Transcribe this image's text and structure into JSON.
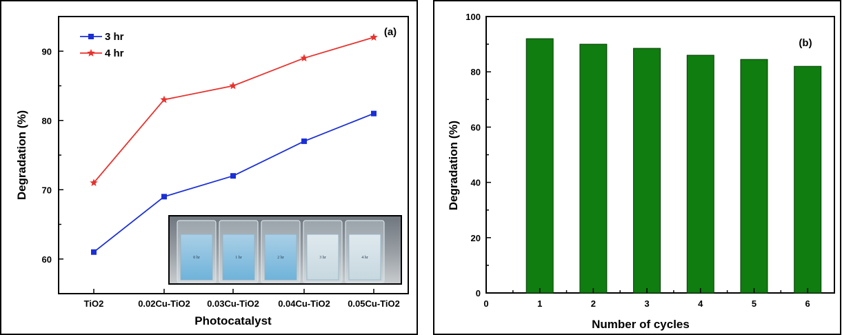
{
  "chart_data": [
    {
      "type": "line",
      "panel_label": "(a)",
      "xlabel": "Photocatalyst",
      "ylabel": "Degradation (%)",
      "categories": [
        "TiO2",
        "0.02Cu-TiO2",
        "0.03Cu-TiO2",
        "0.04Cu-TiO2",
        "0.05Cu-TiO2"
      ],
      "series": [
        {
          "name": "3 hr",
          "values": [
            61,
            69,
            72,
            77,
            81
          ],
          "color": "#1a2fd6",
          "marker": "square"
        },
        {
          "name": "4 hr",
          "values": [
            71,
            83,
            85,
            89,
            92
          ],
          "color": "#e8312c",
          "marker": "star"
        }
      ],
      "ylim": [
        55,
        95
      ],
      "yticks": [
        60,
        70,
        80,
        90
      ],
      "legend_position": "top-left",
      "inset": {
        "type": "photo",
        "description_labels": [
          "0 hr",
          "1 hr",
          "2 hr",
          "3 hr",
          "4 hr"
        ]
      }
    },
    {
      "type": "bar",
      "panel_label": "(b)",
      "xlabel": "Number of cycles",
      "ylabel": "Degradation (%)",
      "categories": [
        1,
        2,
        3,
        4,
        5,
        6
      ],
      "values": [
        92,
        90,
        88.5,
        86,
        84.5,
        82
      ],
      "color": "#0f7d0f",
      "xlim": [
        0,
        6.5
      ],
      "xticks": [
        0,
        1,
        2,
        3,
        4,
        5,
        6
      ],
      "ylim": [
        0,
        100
      ],
      "yticks": [
        0,
        20,
        40,
        60,
        80,
        100
      ]
    }
  ]
}
